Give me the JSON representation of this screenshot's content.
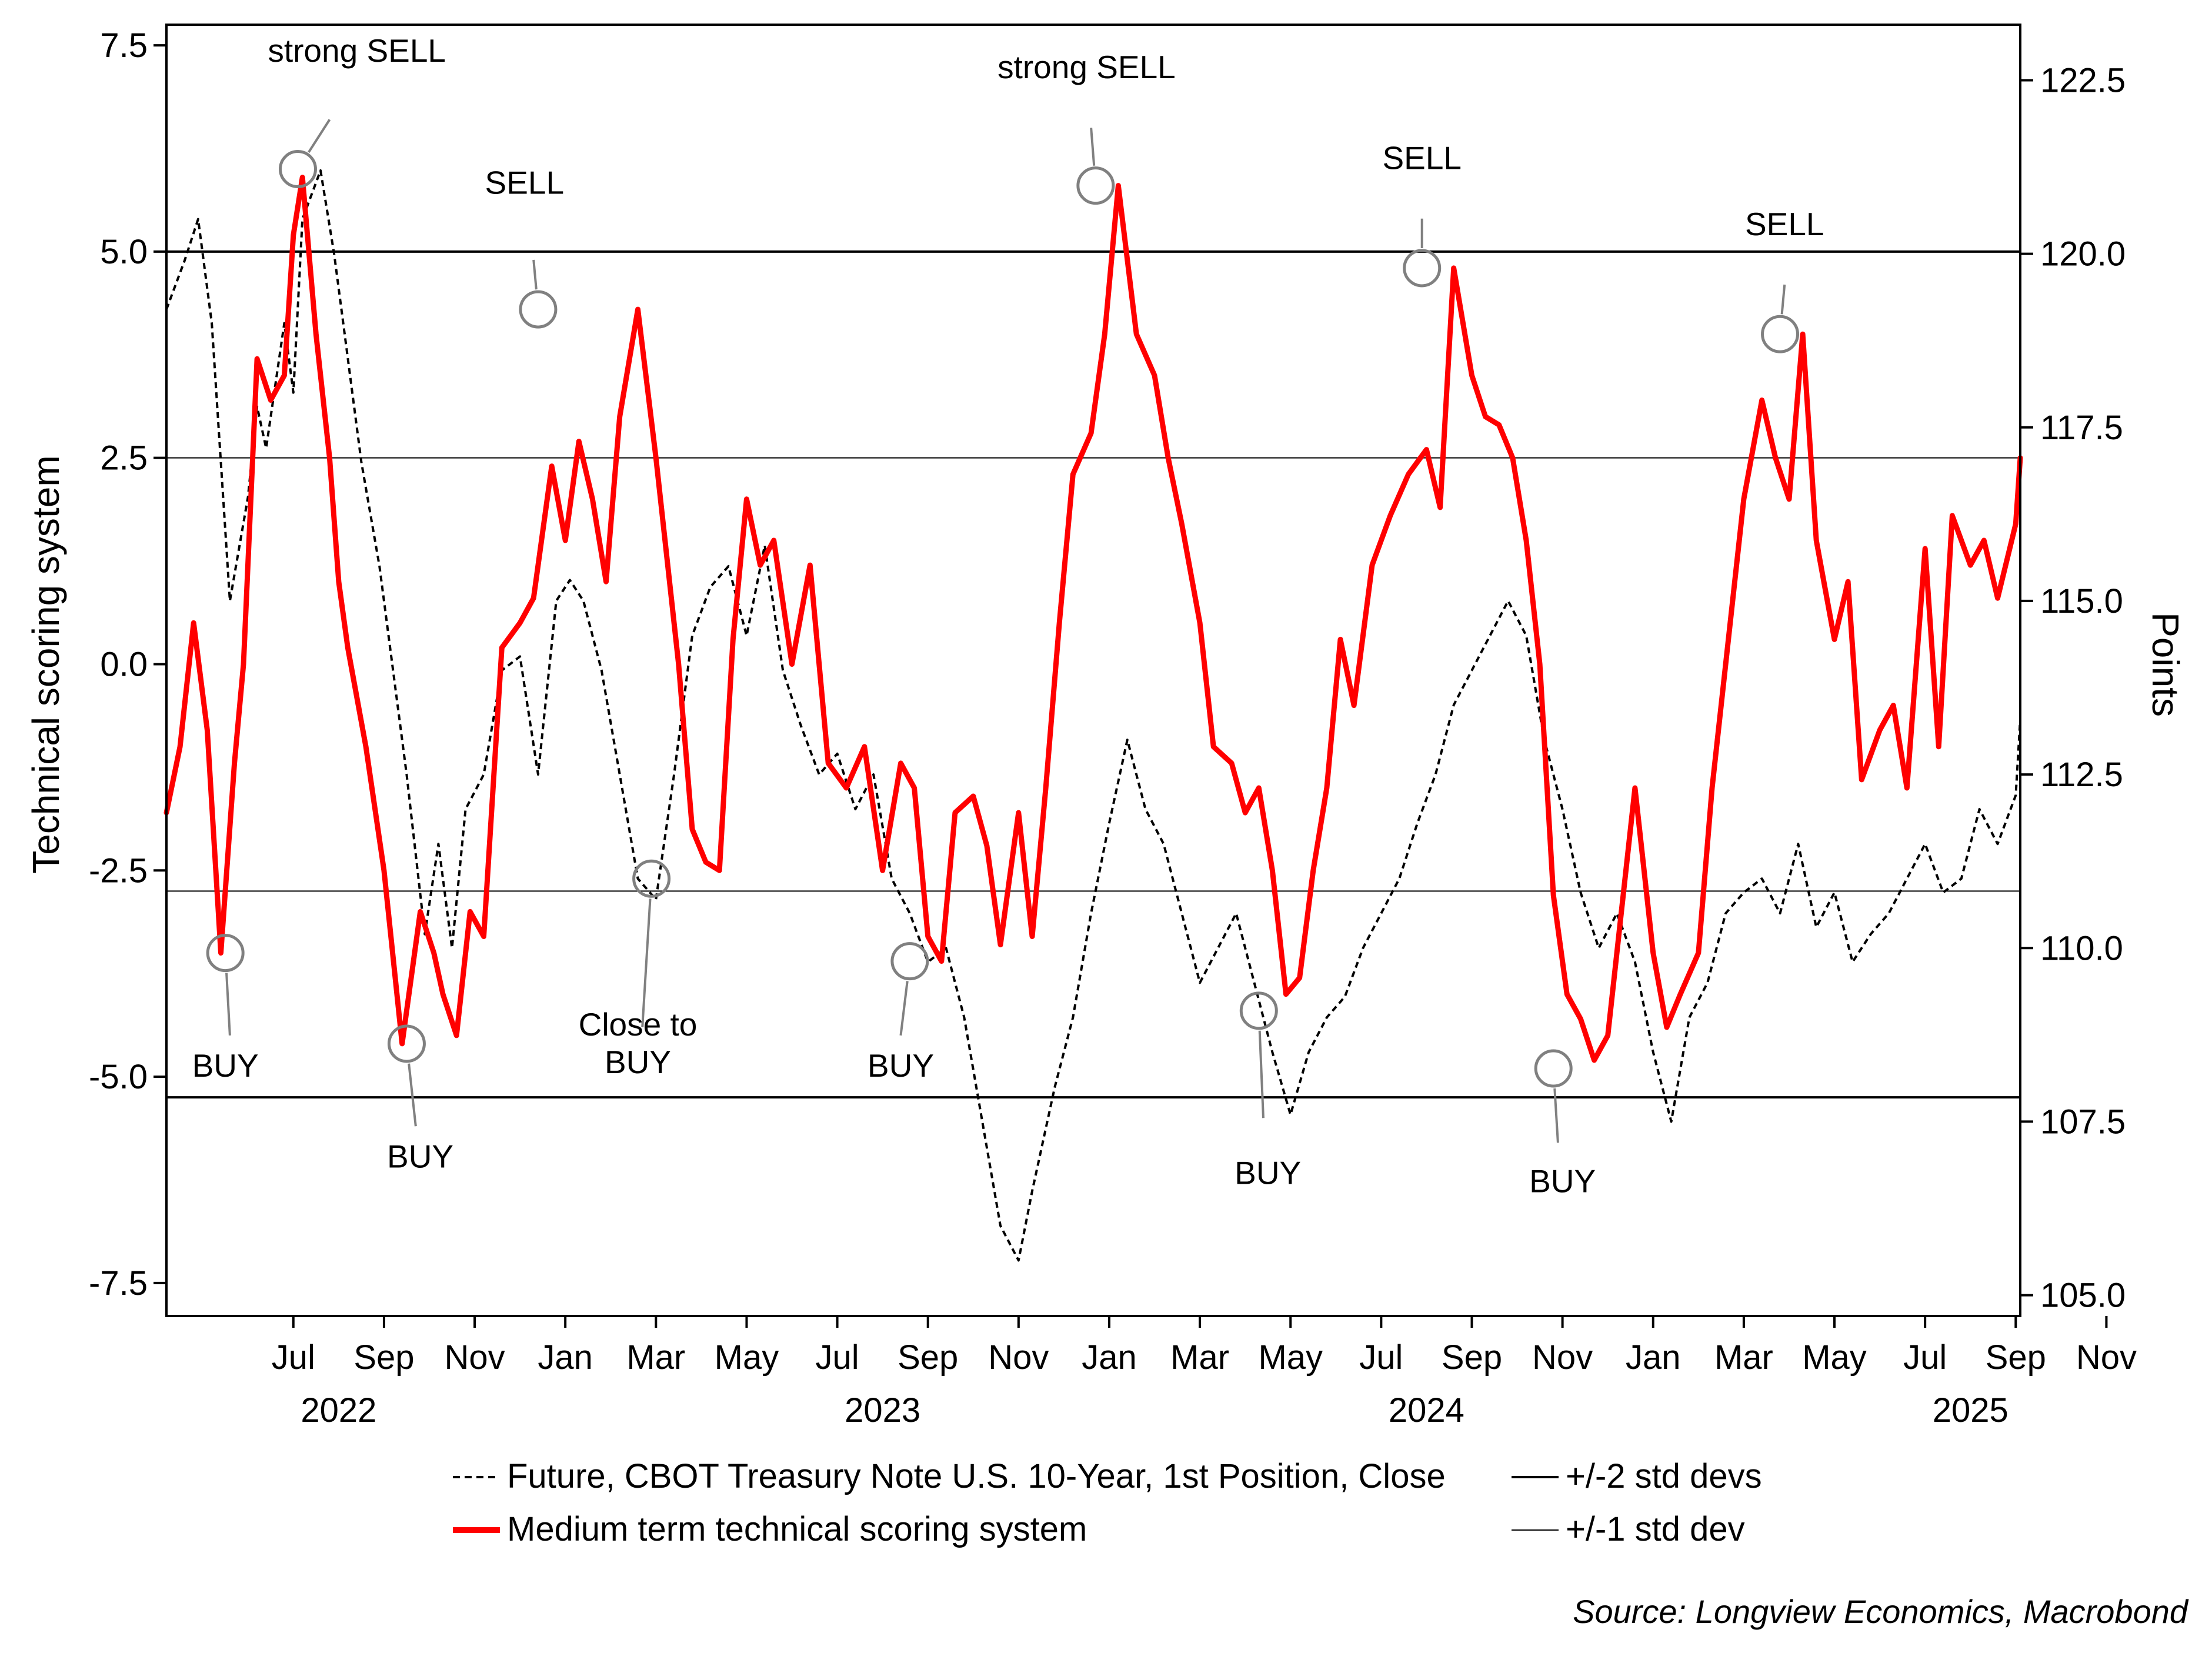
{
  "chart_data": {
    "type": "line",
    "y_left_label": "Technical scoring system",
    "y_right_label": "Points",
    "y_left_ticks": [
      "7.5",
      "5.0",
      "2.5",
      "0.0",
      "-2.5",
      "-5.0",
      "-7.5"
    ],
    "y_left_tick_values": [
      7.5,
      5.0,
      2.5,
      0.0,
      -2.5,
      -5.0,
      -7.5
    ],
    "y_left_lim": [
      -7.9,
      7.75
    ],
    "y_right_ticks": [
      "122.5",
      "120.0",
      "117.5",
      "115.0",
      "112.5",
      "110.0",
      "107.5",
      "105.0"
    ],
    "y_right_tick_values": [
      122.5,
      120.0,
      117.5,
      115.0,
      112.5,
      110.0,
      107.5,
      105.0
    ],
    "y_right_lim": [
      104.7,
      123.3
    ],
    "x_lim": [
      3.2,
      44.1
    ],
    "x_month_ticks": [
      "Jul",
      "Sep",
      "Nov",
      "Jan",
      "Mar",
      "May",
      "Jul",
      "Sep",
      "Nov",
      "Jan",
      "Mar",
      "May",
      "Jul",
      "Sep",
      "Nov",
      "Jan",
      "Mar",
      "May",
      "Jul",
      "Sep",
      "Nov"
    ],
    "x_month_positions": [
      6,
      8,
      10,
      12,
      14,
      16,
      18,
      20,
      22,
      24,
      26,
      28,
      30,
      32,
      34,
      36,
      38,
      40,
      42,
      44,
      46
    ],
    "x_year_labels": [
      "2022",
      "2023",
      "2024",
      "2025"
    ],
    "x_year_positions": [
      7,
      19,
      31,
      43
    ],
    "reference_lines": {
      "plus_2sd": 5.0,
      "plus_1sd": 2.5,
      "minus_1sd": -2.75,
      "minus_2sd": -5.25
    },
    "series": [
      {
        "name": "Future, CBOT Treasury Note U.S. 10-Year, 1st Position, Close",
        "axis": "right",
        "style": "dashed",
        "color": "#000000",
        "x": [
          3.2,
          3.6,
          3.9,
          4.2,
          4.6,
          5.0,
          5.2,
          5.4,
          5.8,
          6.0,
          6.2,
          6.6,
          6.9,
          7.1,
          7.5,
          7.9,
          8.2,
          8.5,
          8.9,
          9.2,
          9.5,
          9.8,
          10.2,
          10.6,
          11.0,
          11.4,
          11.8,
          12.1,
          12.4,
          12.8,
          13.2,
          13.6,
          14.0,
          14.4,
          14.8,
          15.2,
          15.6,
          16.0,
          16.4,
          16.8,
          17.2,
          17.6,
          18.0,
          18.4,
          18.8,
          19.2,
          19.6,
          20.0,
          20.4,
          20.8,
          21.2,
          21.6,
          22.0,
          22.3,
          22.8,
          23.2,
          23.6,
          24.0,
          24.4,
          24.8,
          25.2,
          25.6,
          26.0,
          26.4,
          26.8,
          27.2,
          27.6,
          28.0,
          28.4,
          28.8,
          29.2,
          29.6,
          30.0,
          30.4,
          30.8,
          31.2,
          31.6,
          32.0,
          32.4,
          32.8,
          33.2,
          33.6,
          34.0,
          34.4,
          34.8,
          35.2,
          35.6,
          36.0,
          36.4,
          36.8,
          37.2,
          37.6,
          38.0,
          38.4,
          38.8,
          39.2,
          39.6,
          40.0,
          40.4,
          40.8,
          41.2,
          41.6,
          42.0,
          42.4,
          42.8,
          43.2,
          43.6,
          44.0,
          44.1
        ],
        "values": [
          119.2,
          119.9,
          120.5,
          119.0,
          115.0,
          116.5,
          117.8,
          117.2,
          119.0,
          118.0,
          120.5,
          121.2,
          120.0,
          119.0,
          117.0,
          115.5,
          114.0,
          112.5,
          110.2,
          111.5,
          110.0,
          112.0,
          112.5,
          114.0,
          114.2,
          112.5,
          115.0,
          115.3,
          115.0,
          114.0,
          112.5,
          111.0,
          110.7,
          112.5,
          114.5,
          115.2,
          115.5,
          114.5,
          115.8,
          114.0,
          113.2,
          112.5,
          112.8,
          112.0,
          112.5,
          111.0,
          110.5,
          109.8,
          110.0,
          109.0,
          107.5,
          106.0,
          105.5,
          106.5,
          108.0,
          109.0,
          110.5,
          111.8,
          113.0,
          112.0,
          111.5,
          110.5,
          109.5,
          110.0,
          110.5,
          109.5,
          108.5,
          107.6,
          108.5,
          109.0,
          109.3,
          110.0,
          110.5,
          111.0,
          111.8,
          112.5,
          113.5,
          114.0,
          114.5,
          115.0,
          114.5,
          113.0,
          112.0,
          110.8,
          110.0,
          110.5,
          109.8,
          108.5,
          107.5,
          109.0,
          109.5,
          110.5,
          110.8,
          111.0,
          110.5,
          111.5,
          110.3,
          110.8,
          109.8,
          110.2,
          110.5,
          111.0,
          111.5,
          110.8,
          111.0,
          112.0,
          111.5,
          112.2,
          113.3
        ]
      },
      {
        "name": "Medium term technical scoring system",
        "axis": "left",
        "style": "solid",
        "color": "#ff0000",
        "x": [
          3.2,
          3.5,
          3.8,
          4.1,
          4.4,
          4.7,
          4.9,
          5.2,
          5.5,
          5.8,
          6.0,
          6.2,
          6.5,
          6.8,
          7.0,
          7.2,
          7.6,
          8.0,
          8.4,
          8.8,
          9.1,
          9.3,
          9.6,
          9.9,
          10.2,
          10.6,
          11.0,
          11.3,
          11.7,
          12.0,
          12.3,
          12.6,
          12.9,
          13.2,
          13.6,
          14.0,
          14.2,
          14.5,
          14.8,
          15.1,
          15.4,
          15.7,
          16.0,
          16.3,
          16.6,
          17.0,
          17.4,
          17.8,
          18.2,
          18.6,
          19.0,
          19.4,
          19.7,
          20.0,
          20.3,
          20.6,
          21.0,
          21.3,
          21.6,
          22.0,
          22.3,
          22.6,
          22.9,
          23.2,
          23.6,
          23.9,
          24.2,
          24.6,
          25.0,
          25.3,
          25.6,
          26.0,
          26.3,
          26.7,
          27.0,
          27.3,
          27.6,
          27.9,
          28.2,
          28.5,
          28.8,
          29.1,
          29.4,
          29.8,
          30.2,
          30.6,
          31.0,
          31.3,
          31.6,
          32.0,
          32.3,
          32.6,
          32.9,
          33.2,
          33.5,
          33.8,
          34.1,
          34.4,
          34.7,
          35.0,
          35.3,
          35.6,
          36.0,
          36.3,
          36.6,
          37.0,
          37.3,
          37.6,
          38.0,
          38.4,
          38.7,
          39.0,
          39.3,
          39.6,
          40.0,
          40.3,
          40.6,
          41.0,
          41.3,
          41.6,
          42.0,
          42.3,
          42.6,
          43.0,
          43.3,
          43.6,
          44.0,
          44.1
        ],
        "values": [
          -1.8,
          -1.0,
          0.5,
          -0.8,
          -3.5,
          -1.2,
          0.0,
          3.7,
          3.2,
          3.5,
          5.2,
          5.9,
          4.0,
          2.5,
          1.0,
          0.2,
          -1.0,
          -2.5,
          -4.6,
          -3.0,
          -3.5,
          -4.0,
          -4.5,
          -3.0,
          -3.3,
          0.2,
          0.5,
          0.8,
          2.4,
          1.5,
          2.7,
          2.0,
          1.0,
          3.0,
          4.3,
          2.5,
          1.5,
          0.0,
          -2.0,
          -2.4,
          -2.5,
          0.3,
          2.0,
          1.2,
          1.5,
          0.0,
          1.2,
          -1.2,
          -1.5,
          -1.0,
          -2.5,
          -1.2,
          -1.5,
          -3.3,
          -3.6,
          -1.8,
          -1.6,
          -2.2,
          -3.4,
          -1.8,
          -3.3,
          -1.5,
          0.5,
          2.3,
          2.8,
          4.0,
          5.8,
          4.0,
          3.5,
          2.5,
          1.7,
          0.5,
          -1.0,
          -1.2,
          -1.8,
          -1.5,
          -2.5,
          -4.0,
          -3.8,
          -2.5,
          -1.5,
          0.3,
          -0.5,
          1.2,
          1.8,
          2.3,
          2.6,
          1.9,
          4.8,
          3.5,
          3.0,
          2.9,
          2.5,
          1.5,
          0.0,
          -2.8,
          -4.0,
          -4.3,
          -4.8,
          -4.5,
          -3.0,
          -1.5,
          -3.5,
          -4.4,
          -4.0,
          -3.5,
          -1.5,
          0.0,
          2.0,
          3.2,
          2.5,
          2.0,
          4.0,
          1.5,
          0.3,
          1.0,
          -1.4,
          -0.8,
          -0.5,
          -1.5,
          1.4,
          -1.0,
          1.8,
          1.2,
          1.5,
          0.8,
          1.7,
          2.5
        ]
      }
    ],
    "annotations": [
      {
        "label": "BUY",
        "x": 4.5,
        "y": -3.5,
        "line_end_x": 4.6,
        "line_end_y": -4.5,
        "text_x": 4.5,
        "text_y": -5.0
      },
      {
        "label": "strong SELL",
        "x": 6.1,
        "y": 6.0,
        "line_end_x": 6.8,
        "line_end_y": 6.6,
        "text_x": 7.4,
        "text_y": 7.3
      },
      {
        "label": "BUY",
        "x": 8.5,
        "y": -4.6,
        "line_end_x": 8.7,
        "line_end_y": -5.6,
        "text_x": 8.8,
        "text_y": -6.1
      },
      {
        "label": "SELL",
        "x": 11.4,
        "y": 4.3,
        "line_end_x": 11.3,
        "line_end_y": 4.9,
        "text_x": 11.1,
        "text_y": 5.7
      },
      {
        "label": "Close to\nBUY",
        "x": 13.9,
        "y": -2.6,
        "line_end_x": 13.7,
        "line_end_y": -4.4,
        "text_x": 13.6,
        "text_y": -4.5
      },
      {
        "label": "BUY",
        "x": 19.6,
        "y": -3.6,
        "line_end_x": 19.4,
        "line_end_y": -4.5,
        "text_x": 19.4,
        "text_y": -5.0
      },
      {
        "label": "strong SELL",
        "x": 23.7,
        "y": 5.8,
        "line_end_x": 23.6,
        "line_end_y": 6.5,
        "text_x": 23.5,
        "text_y": 7.1
      },
      {
        "label": "BUY",
        "x": 27.3,
        "y": -4.2,
        "line_end_x": 27.4,
        "line_end_y": -5.5,
        "text_x": 27.5,
        "text_y": -6.3
      },
      {
        "label": "SELL",
        "x": 30.9,
        "y": 4.8,
        "line_end_x": 30.9,
        "line_end_y": 5.4,
        "text_x": 30.9,
        "text_y": 6.0
      },
      {
        "label": "BUY",
        "x": 33.8,
        "y": -4.9,
        "line_end_x": 33.9,
        "line_end_y": -5.8,
        "text_x": 34.0,
        "text_y": -6.4
      },
      {
        "label": "SELL",
        "x": 38.8,
        "y": 4.0,
        "line_end_x": 38.9,
        "line_end_y": 4.6,
        "text_x": 38.9,
        "text_y": 5.2
      }
    ],
    "legend": [
      {
        "label": "Future, CBOT Treasury Note U.S. 10-Year, 1st Position, Close",
        "style": "dashed",
        "color": "#000000"
      },
      {
        "label": "+/-2 std devs",
        "style": "solid-thick",
        "color": "#000000"
      },
      {
        "label": "Medium term technical scoring system",
        "style": "solid-red",
        "color": "#ff0000"
      },
      {
        "label": "+/-1 std dev",
        "style": "solid-thin",
        "color": "#000000"
      }
    ],
    "legend_position": "bottom",
    "source": "Source: Longview Economics, Macrobond"
  }
}
